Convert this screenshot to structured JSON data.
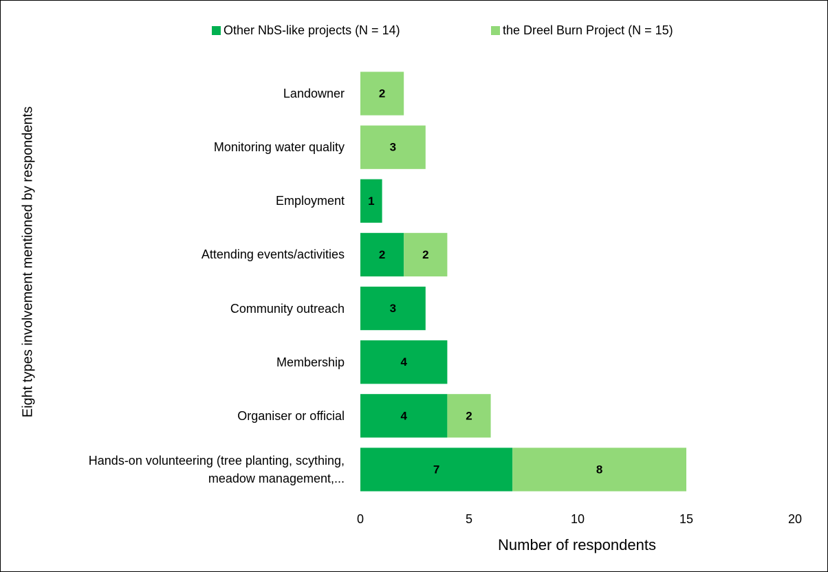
{
  "chart_data": {
    "type": "horizontal_stacked_bar",
    "categories": [
      "Landowner",
      "Monitoring water quality",
      "Employment",
      "Attending events/activities",
      "Community outreach",
      "Membership",
      "Organiser or official",
      "Hands-on volunteering (tree planting, scything, meadow management,..."
    ],
    "series": [
      {
        "name": "Other NbS-like projects (N = 14)",
        "color": "#00b050",
        "values": [
          0,
          0,
          1,
          2,
          3,
          4,
          4,
          7
        ]
      },
      {
        "name": "the Dreel Burn Project (N = 15)",
        "color": "#92d978",
        "values": [
          2,
          3,
          0,
          2,
          0,
          0,
          2,
          8
        ]
      }
    ],
    "xlim": [
      0,
      20
    ],
    "xticks": [
      0,
      5,
      10,
      15,
      20
    ],
    "x_label": "Number of respondents",
    "y_label": "Eight types involvement mentioned by respondents",
    "legend": "top",
    "grid": false
  }
}
